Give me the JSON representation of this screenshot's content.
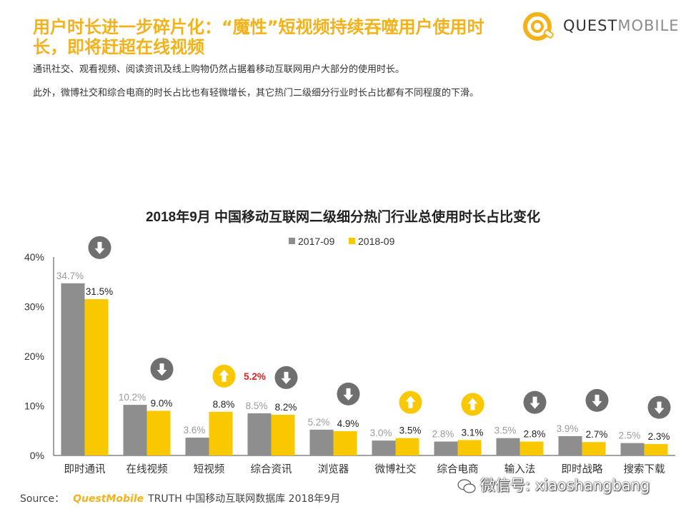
{
  "header": {
    "headline": "用户时长进一步碎片化：“魔性”短视频持续吞噬用户使用时长，即将赶超在线视频",
    "desc1": "通讯社交、观看视频、阅读资讯及线上购物仍然占据着移动互联网用户大部分的使用时长。",
    "desc2": "此外，微博社交和综合电商的时长占比也有轻微增长，其它热门二级细分行业时长占比都有不同程度的下滑。"
  },
  "logo": {
    "part1": "QUEST",
    "part2": "MOBILE",
    "icon": "questmobile-logo-icon"
  },
  "footer": {
    "source_label": "Source：",
    "brand": "QuestMobile",
    "rest": "TRUTH 中国移动互联网数据库 2018年9月"
  },
  "watermark": {
    "text": "微信号: xiaoshangbang",
    "icon": "wechat-icon"
  },
  "colors": {
    "series_2017": "#8e8e8e",
    "series_2018": "#f9c800",
    "up_badge": "#f9c800",
    "down_badge": "#6f6f6f",
    "highlight": "#e02020",
    "axis": "#444444"
  },
  "chart_data": {
    "type": "bar",
    "title": "2018年9月 中国移动互联网二级细分热门行业总使用时长占比变化",
    "xlabel": "",
    "ylabel": "",
    "ylim": [
      0,
      40
    ],
    "yticks": [
      "0%",
      "10%",
      "20%",
      "30%",
      "40%"
    ],
    "legend_position": "top-center",
    "grid": false,
    "categories": [
      "即时通讯",
      "在线视频",
      "短视频",
      "综合资讯",
      "浏览器",
      "微博社交",
      "综合电商",
      "输入法",
      "即时战略",
      "搜索下载"
    ],
    "series": [
      {
        "name": "2017-09",
        "values": [
          34.7,
          10.2,
          3.6,
          8.5,
          5.2,
          3.0,
          2.8,
          3.5,
          3.9,
          2.5
        ],
        "labels": [
          "34.7%",
          "10.2%",
          "3.6%",
          "8.5%",
          "5.2%",
          "3.0%",
          "2.8%",
          "3.5%",
          "3.9%",
          "2.5%"
        ]
      },
      {
        "name": "2018-09",
        "values": [
          31.5,
          9.0,
          8.8,
          8.2,
          4.9,
          3.5,
          3.1,
          2.8,
          2.7,
          2.3
        ],
        "labels": [
          "31.5%",
          "9.0%",
          "8.8%",
          "8.2%",
          "4.9%",
          "3.5%",
          "3.1%",
          "2.8%",
          "2.7%",
          "2.3%"
        ]
      }
    ],
    "trend": [
      "down",
      "down",
      "up",
      "down",
      "down",
      "up",
      "up",
      "down",
      "down",
      "down"
    ],
    "annotations": [
      {
        "category": "短视频",
        "text": "5.2%"
      }
    ]
  }
}
